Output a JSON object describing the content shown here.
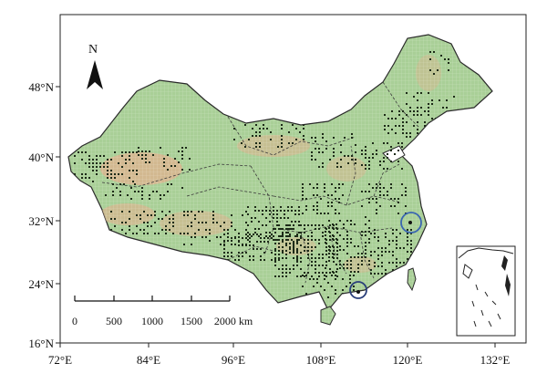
{
  "map": {
    "north_label": "N",
    "lon_labels": [
      "72°E",
      "84°E",
      "96°E",
      "108°E",
      "120°E",
      "132°E"
    ],
    "lat_labels": [
      "48°N",
      "40°N",
      "32°N",
      "24°N",
      "16°N"
    ],
    "scale_bar": {
      "ticks": [
        "0",
        "500",
        "1000",
        "1500",
        "2000 km"
      ]
    },
    "colors": {
      "land_fill": "#a9cf97",
      "desert_fill": "#d9b48f",
      "station_dot": "#1d2b18",
      "border": "#2a2a2a",
      "highlight_circle": "#3a66b0"
    },
    "legend": []
  }
}
